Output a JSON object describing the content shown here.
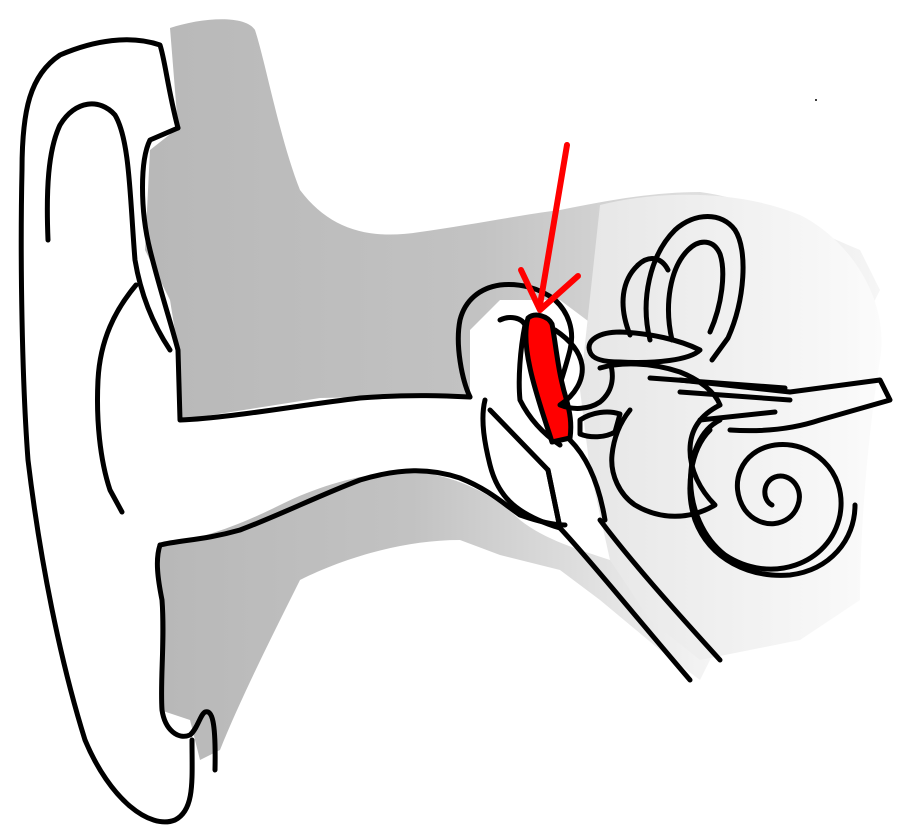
{
  "diagram": {
    "subject": "ear-anatomy",
    "highlighted_structure": "malleus",
    "colors": {
      "background": "#ffffff",
      "outline": "#000000",
      "tissue_shade": "#bdbdbd",
      "tissue_shade_light": "#e2e2e2",
      "highlight": "#ff0000",
      "pointer_arrow": "#ff0000"
    }
  }
}
